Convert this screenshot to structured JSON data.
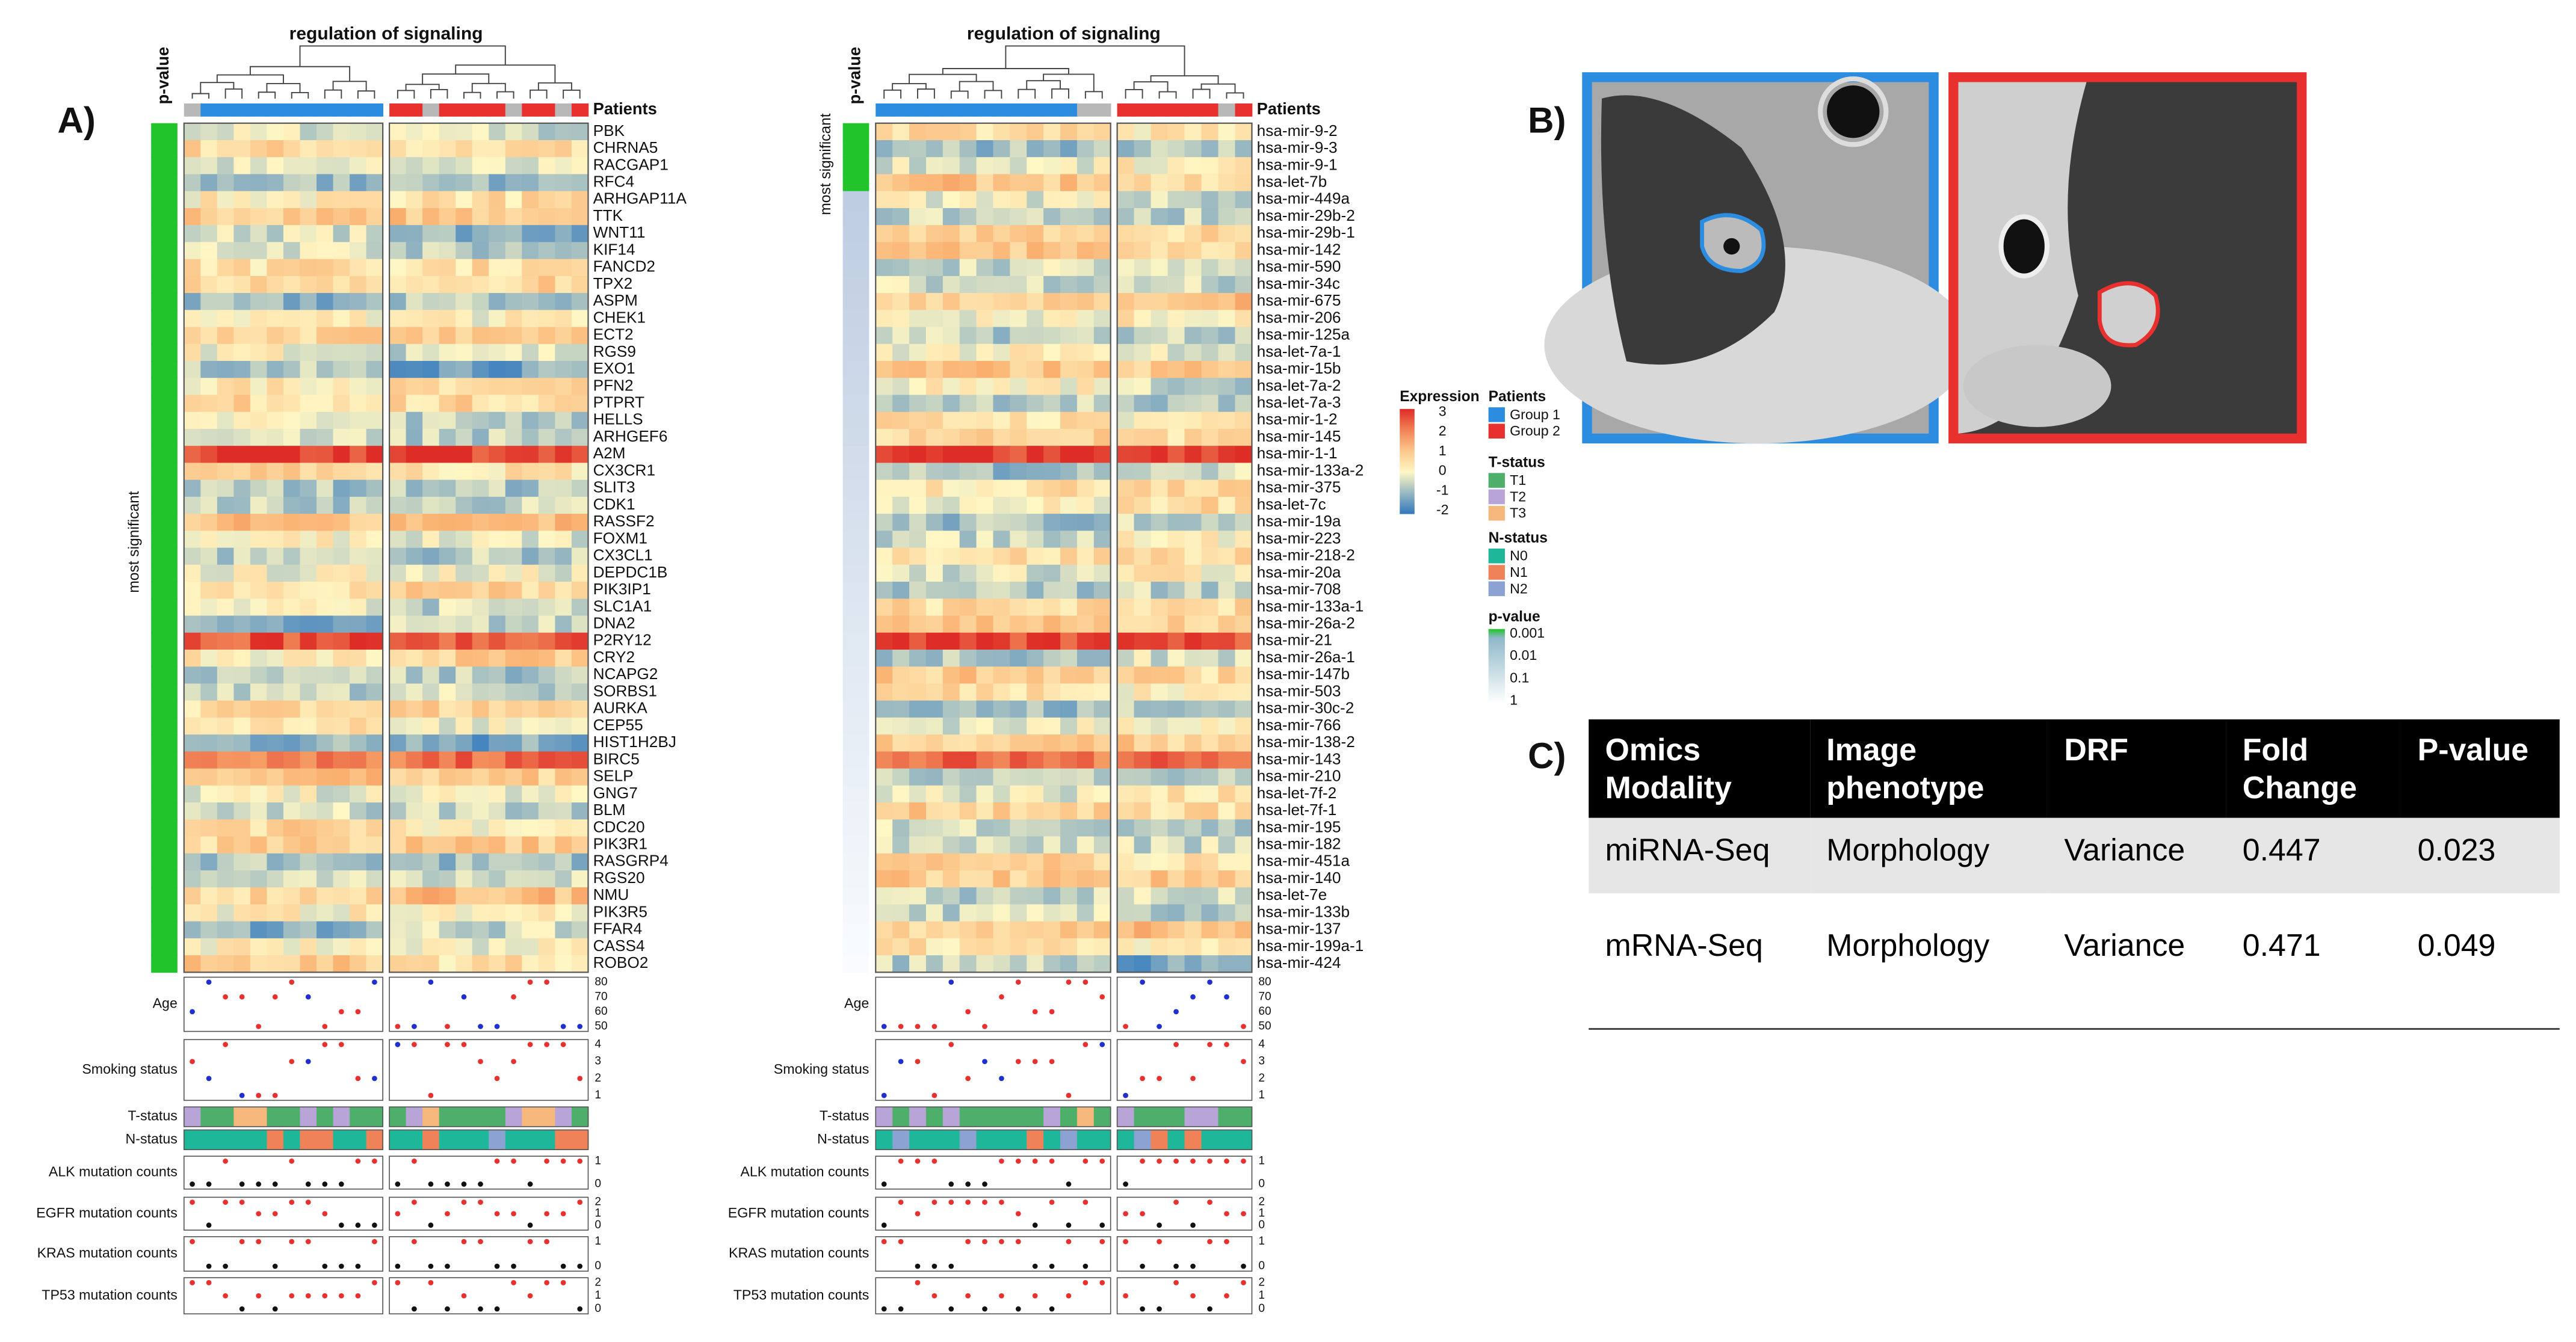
{
  "panel_labels": {
    "a": "A)",
    "b": "B)",
    "c": "C)"
  },
  "heatmaps": [
    {
      "title": "regulation of signaling",
      "pvalue_label": "p-value",
      "patients_label": "Patients",
      "side_label": "most significant",
      "rows": [
        "PBK",
        "CHRNA5",
        "RACGAP1",
        "RFC4",
        "ARHGAP11A",
        "TTK",
        "WNT11",
        "KIF14",
        "FANCD2",
        "TPX2",
        "ASPM",
        "CHEK1",
        "ECT2",
        "RGS9",
        "EXO1",
        "PFN2",
        "PTPRT",
        "HELLS",
        "ARHGEF6",
        "A2M",
        "CX3CR1",
        "SLIT3",
        "CDK1",
        "RASSF2",
        "FOXM1",
        "CX3CL1",
        "DEPDC1B",
        "PIK3IP1",
        "SLC1A1",
        "DNA2",
        "P2RY12",
        "CRY2",
        "NCAPG2",
        "SORBS1",
        "AURKA",
        "CEP55",
        "HIST1H2BJ",
        "BIRC5",
        "SELP",
        "GNG7",
        "BLM",
        "CDC20",
        "PIK3R1",
        "RASGRP4",
        "RGS20",
        "NMU",
        "PIK3R5",
        "FFAR4",
        "CASS4",
        "ROBO2"
      ]
    },
    {
      "title": "regulation of signaling",
      "pvalue_label": "p-value",
      "patients_label": "Patients",
      "side_label": "most significant",
      "rows": [
        "hsa-mir-9-2",
        "hsa-mir-9-3",
        "hsa-mir-9-1",
        "hsa-let-7b",
        "hsa-mir-449a",
        "hsa-mir-29b-2",
        "hsa-mir-29b-1",
        "hsa-mir-142",
        "hsa-mir-590",
        "hsa-mir-34c",
        "hsa-mir-675",
        "hsa-mir-206",
        "hsa-mir-125a",
        "hsa-let-7a-1",
        "hsa-mir-15b",
        "hsa-let-7a-2",
        "hsa-let-7a-3",
        "hsa-mir-1-2",
        "hsa-mir-145",
        "hsa-mir-1-1",
        "hsa-mir-133a-2",
        "hsa-mir-375",
        "hsa-let-7c",
        "hsa-mir-19a",
        "hsa-mir-223",
        "hsa-mir-218-2",
        "hsa-mir-20a",
        "hsa-mir-708",
        "hsa-mir-133a-1",
        "hsa-mir-26a-2",
        "hsa-mir-21",
        "hsa-mir-26a-1",
        "hsa-mir-147b",
        "hsa-mir-503",
        "hsa-mir-30c-2",
        "hsa-mir-766",
        "hsa-mir-138-2",
        "hsa-mir-143",
        "hsa-mir-210",
        "hsa-let-7f-2",
        "hsa-let-7f-1",
        "hsa-mir-195",
        "hsa-mir-182",
        "hsa-mir-451a",
        "hsa-mir-140",
        "hsa-let-7e",
        "hsa-mir-133b",
        "hsa-mir-137",
        "hsa-mir-199a-1",
        "hsa-mir-424"
      ]
    }
  ],
  "tracks": [
    {
      "label": "Age",
      "ticks": [
        80,
        70,
        60,
        50
      ]
    },
    {
      "label": "Smoking status",
      "ticks": [
        4,
        3,
        2,
        1
      ]
    },
    {
      "label": "T-status"
    },
    {
      "label": "N-status"
    },
    {
      "label": "ALK mutation counts",
      "ticks": [
        1,
        0
      ]
    },
    {
      "label": "EGFR mutation counts",
      "ticks": [
        2,
        1,
        0
      ]
    },
    {
      "label": "KRAS mutation counts",
      "ticks": [
        1,
        0
      ]
    },
    {
      "label": "TP53 mutation counts",
      "ticks": [
        2,
        1,
        0
      ]
    }
  ],
  "legend": {
    "expression": {
      "title": "Expression",
      "ticks": [
        3,
        2,
        1,
        0,
        -1,
        -2
      ]
    },
    "patients": {
      "title": "Patients",
      "items": [
        {
          "name": "Group 1",
          "color": "#2b8ce0"
        },
        {
          "name": "Group 2",
          "color": "#e8312f"
        }
      ]
    },
    "t_status": {
      "title": "T-status",
      "items": [
        {
          "name": "T1",
          "color": "#4daf6a"
        },
        {
          "name": "T2",
          "color": "#b9a4d8"
        },
        {
          "name": "T3",
          "color": "#f6b77c"
        }
      ]
    },
    "n_status": {
      "title": "N-status",
      "items": [
        {
          "name": "N0",
          "color": "#1fb79a"
        },
        {
          "name": "N1",
          "color": "#f08259"
        },
        {
          "name": "N2",
          "color": "#8ca2d2"
        }
      ]
    },
    "p_value": {
      "title": "p-value",
      "ticks": [
        0.001,
        0.01,
        0.1,
        1
      ]
    }
  },
  "table": {
    "header": [
      "Omics Modality",
      "Image phenotype",
      "DRF",
      "Fold Change",
      "P-value"
    ],
    "rows": [
      [
        "miRNA-Seq",
        "Morphology",
        "Variance",
        0.447,
        0.023
      ],
      [
        "mRNA-Seq",
        "Morphology",
        "Variance",
        0.471,
        0.049
      ]
    ]
  }
}
